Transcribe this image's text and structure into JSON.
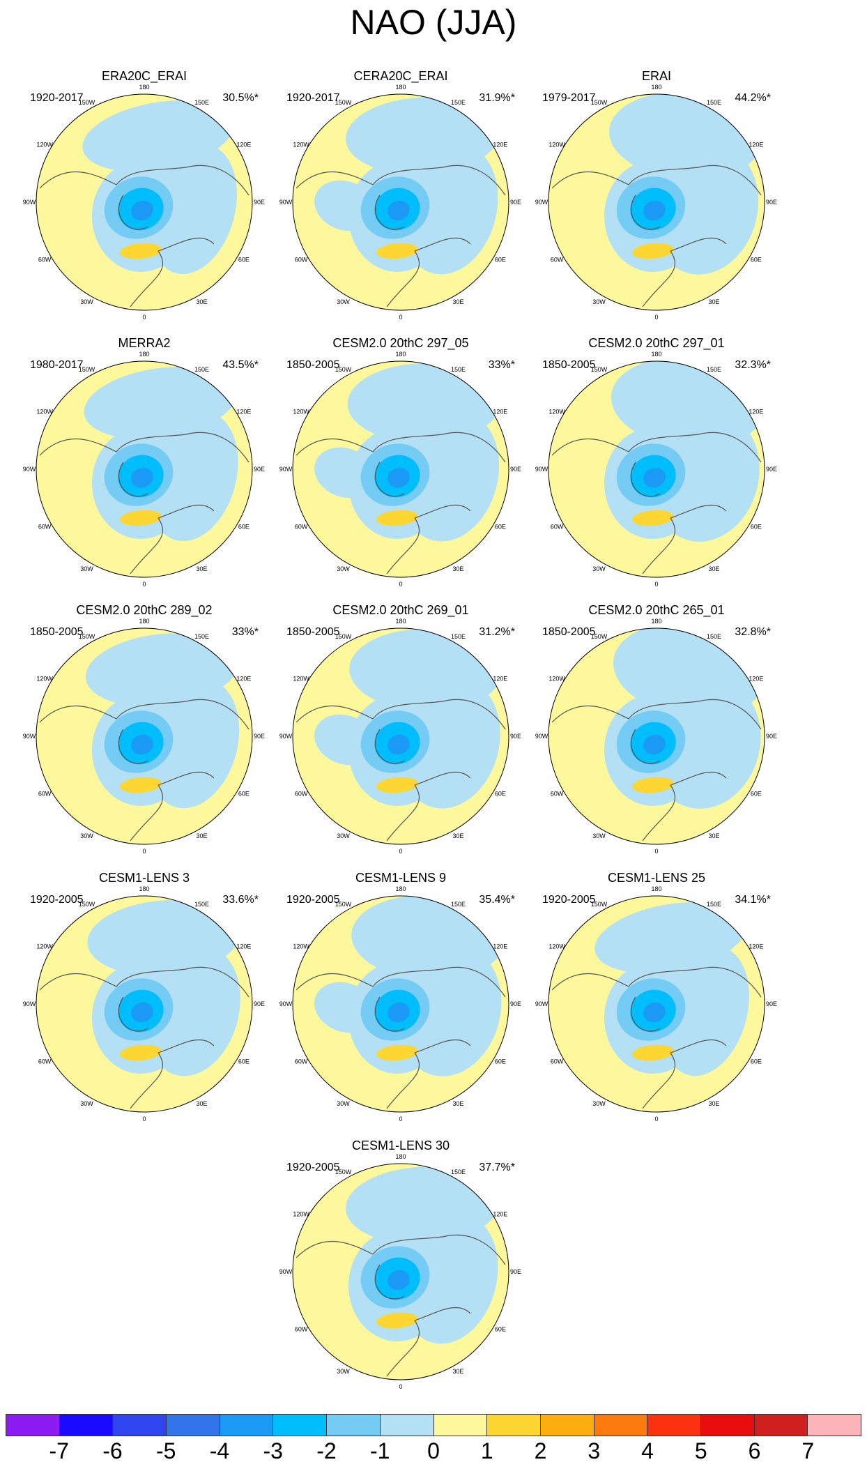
{
  "title": "NAO (JJA)",
  "chart_data": {
    "type": "heatmap",
    "projection": "north polar stereographic",
    "title": "NAO (JJA)",
    "longitude_labels": [
      "180",
      "150E",
      "120E",
      "90E",
      "60E",
      "30E",
      "0",
      "30W",
      "60W",
      "90W",
      "120W",
      "150W"
    ],
    "colorbar": {
      "ticks": [
        "-7",
        "-6",
        "-5",
        "-4",
        "-3",
        "-2",
        "-1",
        "0",
        "1",
        "2",
        "3",
        "4",
        "5",
        "6",
        "7"
      ],
      "colors": [
        "#8c1cf2",
        "#1a0aff",
        "#2f45f0",
        "#3275ea",
        "#1a9af5",
        "#00bdfb",
        "#74cbf4",
        "#b3e0f4",
        "#fdf89c",
        "#fdd631",
        "#fbae0d",
        "#fb7a0d",
        "#fa3210",
        "#e80d0d",
        "#d01f1f",
        "#fdb4b9"
      ]
    },
    "panels": [
      {
        "name": "ERA20C_ERAI",
        "period": "1920-2017",
        "variance": "30.5%*"
      },
      {
        "name": "CERA20C_ERAI",
        "period": "1920-2017",
        "variance": "31.9%*"
      },
      {
        "name": "ERAI",
        "period": "1979-2017",
        "variance": "44.2%*"
      },
      {
        "name": "MERRA2",
        "period": "1980-2017",
        "variance": "43.5%*"
      },
      {
        "name": "CESM2.0 20thC 297_05",
        "period": "1850-2005",
        "variance": "33%*"
      },
      {
        "name": "CESM2.0 20thC 297_01",
        "period": "1850-2005",
        "variance": "32.3%*"
      },
      {
        "name": "CESM2.0 20thC 289_02",
        "period": "1850-2005",
        "variance": "33%*"
      },
      {
        "name": "CESM2.0 20thC 269_01",
        "period": "1850-2005",
        "variance": "31.2%*"
      },
      {
        "name": "CESM2.0 20thC 265_01",
        "period": "1850-2005",
        "variance": "32.8%*"
      },
      {
        "name": "CESM1-LENS 3",
        "period": "1920-2005",
        "variance": "33.6%*"
      },
      {
        "name": "CESM1-LENS 9",
        "period": "1920-2005",
        "variance": "35.4%*"
      },
      {
        "name": "CESM1-LENS 25",
        "period": "1920-2005",
        "variance": "34.1%*"
      },
      {
        "name": "CESM1-LENS 30",
        "period": "1920-2005",
        "variance": "37.7%*"
      }
    ]
  }
}
